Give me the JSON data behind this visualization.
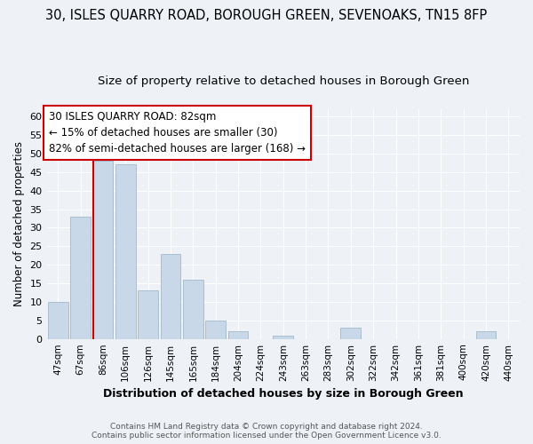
{
  "title": "30, ISLES QUARRY ROAD, BOROUGH GREEN, SEVENOAKS, TN15 8FP",
  "subtitle": "Size of property relative to detached houses in Borough Green",
  "xlabel": "Distribution of detached houses by size in Borough Green",
  "ylabel": "Number of detached properties",
  "bar_labels": [
    "47sqm",
    "67sqm",
    "86sqm",
    "106sqm",
    "126sqm",
    "145sqm",
    "165sqm",
    "184sqm",
    "204sqm",
    "224sqm",
    "243sqm",
    "263sqm",
    "283sqm",
    "302sqm",
    "322sqm",
    "342sqm",
    "361sqm",
    "381sqm",
    "400sqm",
    "420sqm",
    "440sqm"
  ],
  "bar_values": [
    10,
    33,
    48,
    47,
    13,
    23,
    16,
    5,
    2,
    0,
    1,
    0,
    0,
    3,
    0,
    0,
    0,
    0,
    0,
    2,
    0
  ],
  "bar_color": "#c8d8e8",
  "bar_edge_color": "#a8bfd0",
  "property_line_bar_index": 2,
  "annotation_line1": "30 ISLES QUARRY ROAD: 82sqm",
  "annotation_line2": "← 15% of detached houses are smaller (30)",
  "annotation_line3": "82% of semi-detached houses are larger (168) →",
  "annotation_box_color": "#ffffff",
  "annotation_box_edge": "#cc0000",
  "line_color": "#cc0000",
  "ylim": [
    0,
    62
  ],
  "yticks": [
    0,
    5,
    10,
    15,
    20,
    25,
    30,
    35,
    40,
    45,
    50,
    55,
    60
  ],
  "footer_line1": "Contains HM Land Registry data © Crown copyright and database right 2024.",
  "footer_line2": "Contains public sector information licensed under the Open Government Licence v3.0.",
  "bg_color": "#eef2f7",
  "title_fontsize": 10.5,
  "subtitle_fontsize": 9.5,
  "annotation_fontsize": 8.5,
  "xlabel_fontsize": 9,
  "ylabel_fontsize": 8.5
}
